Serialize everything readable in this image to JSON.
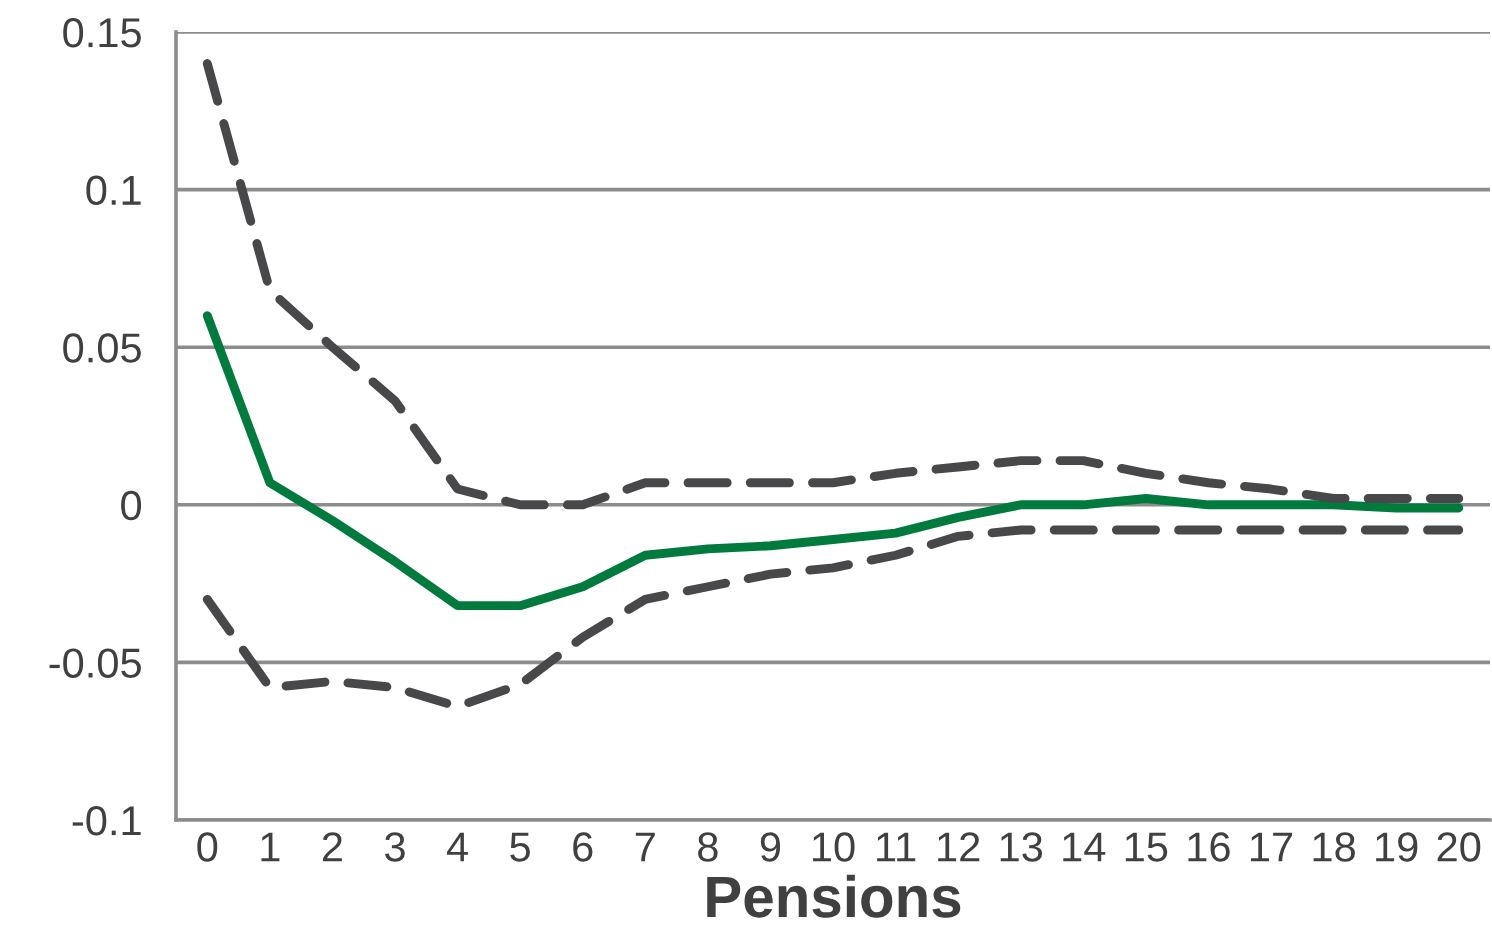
{
  "chart_data": {
    "type": "line",
    "xlabel": "Pensions",
    "categories": [
      "0",
      "1",
      "2",
      "3",
      "4",
      "5",
      "6",
      "7",
      "8",
      "9",
      "10",
      "11",
      "12",
      "13",
      "14",
      "15",
      "16",
      "17",
      "18",
      "19",
      "20"
    ],
    "series": [
      {
        "color": "#007a3d",
        "line_style": "solid",
        "values": [
          0.06,
          0.007,
          -0.005,
          -0.018,
          -0.032,
          -0.032,
          -0.026,
          -0.016,
          -0.014,
          -0.013,
          -0.011,
          -0.009,
          -0.004,
          0,
          0,
          0.002,
          0,
          0,
          0,
          -0.001,
          -0.001
        ]
      },
      {
        "color": "#48484a",
        "line_style": "dashed",
        "values": [
          0.14,
          0.068,
          0.05,
          0.033,
          0.005,
          0,
          0,
          0.007,
          0.007,
          0.007,
          0.007,
          0.01,
          0.012,
          0.014,
          0.014,
          0.01,
          0.007,
          0.005,
          0.002,
          0.002,
          0.002
        ]
      },
      {
        "color": "#48484a",
        "line_style": "dashed",
        "values": [
          -0.03,
          -0.058,
          -0.056,
          -0.058,
          -0.064,
          -0.057,
          -0.042,
          -0.03,
          -0.026,
          -0.022,
          -0.02,
          -0.016,
          -0.01,
          -0.008,
          -0.008,
          -0.008,
          -0.008,
          -0.008,
          -0.008,
          -0.008,
          -0.008
        ]
      }
    ],
    "ylim": [
      -0.1,
      0.15
    ],
    "yticks": [
      {
        "value": -0.1,
        "label": "-0.1"
      },
      {
        "value": -0.05,
        "label": "-0.05"
      },
      0,
      0.05,
      0.1,
      0.15
    ],
    "grid": "y",
    "marker": "none"
  }
}
